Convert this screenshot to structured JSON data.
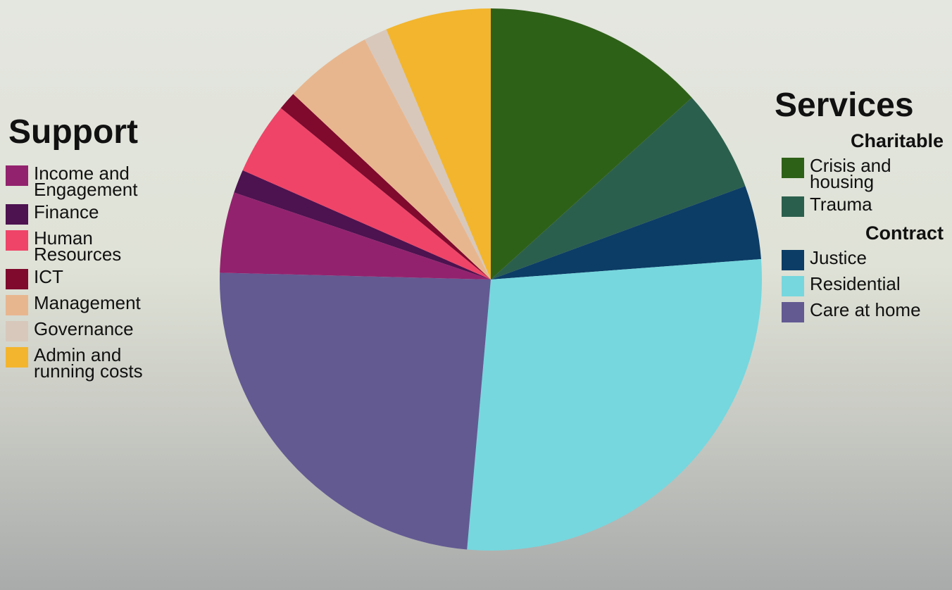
{
  "chart_data": {
    "type": "pie",
    "groups": [
      {
        "title": "Services",
        "subgroups": [
          {
            "title": "Charitable",
            "slices": [
              {
                "name": "Crisis and housing",
                "value": 13.3,
                "color": "#2e6118"
              },
              {
                "name": "Trauma",
                "value": 6.1,
                "color": "#2b5f4d"
              }
            ]
          },
          {
            "title": "Contract",
            "slices": [
              {
                "name": "Justice",
                "value": 4.4,
                "color": "#0c3d66"
              },
              {
                "name": "Residential",
                "value": 27.6,
                "color": "#76d7de"
              },
              {
                "name": "Care at home",
                "value": 24,
                "color": "#635a92"
              }
            ]
          }
        ]
      },
      {
        "title": "Support",
        "slices": [
          {
            "name": "Income and Engagement",
            "value": 4.8,
            "color": "#93226e"
          },
          {
            "name": "Finance",
            "value": 1.4,
            "color": "#4d1250"
          },
          {
            "name": "Human Resources",
            "value": 4.3,
            "color": "#ef4468"
          },
          {
            "name": "ICT",
            "value": 1.1,
            "color": "#7f0a2e"
          },
          {
            "name": "Management",
            "value": 5.3,
            "color": "#e8b68e"
          },
          {
            "name": "Governance",
            "value": 1.4,
            "color": "#d8c8bc"
          },
          {
            "name": "Admin and running costs",
            "value": 6.3,
            "color": "#f2b52d"
          }
        ]
      }
    ]
  }
}
